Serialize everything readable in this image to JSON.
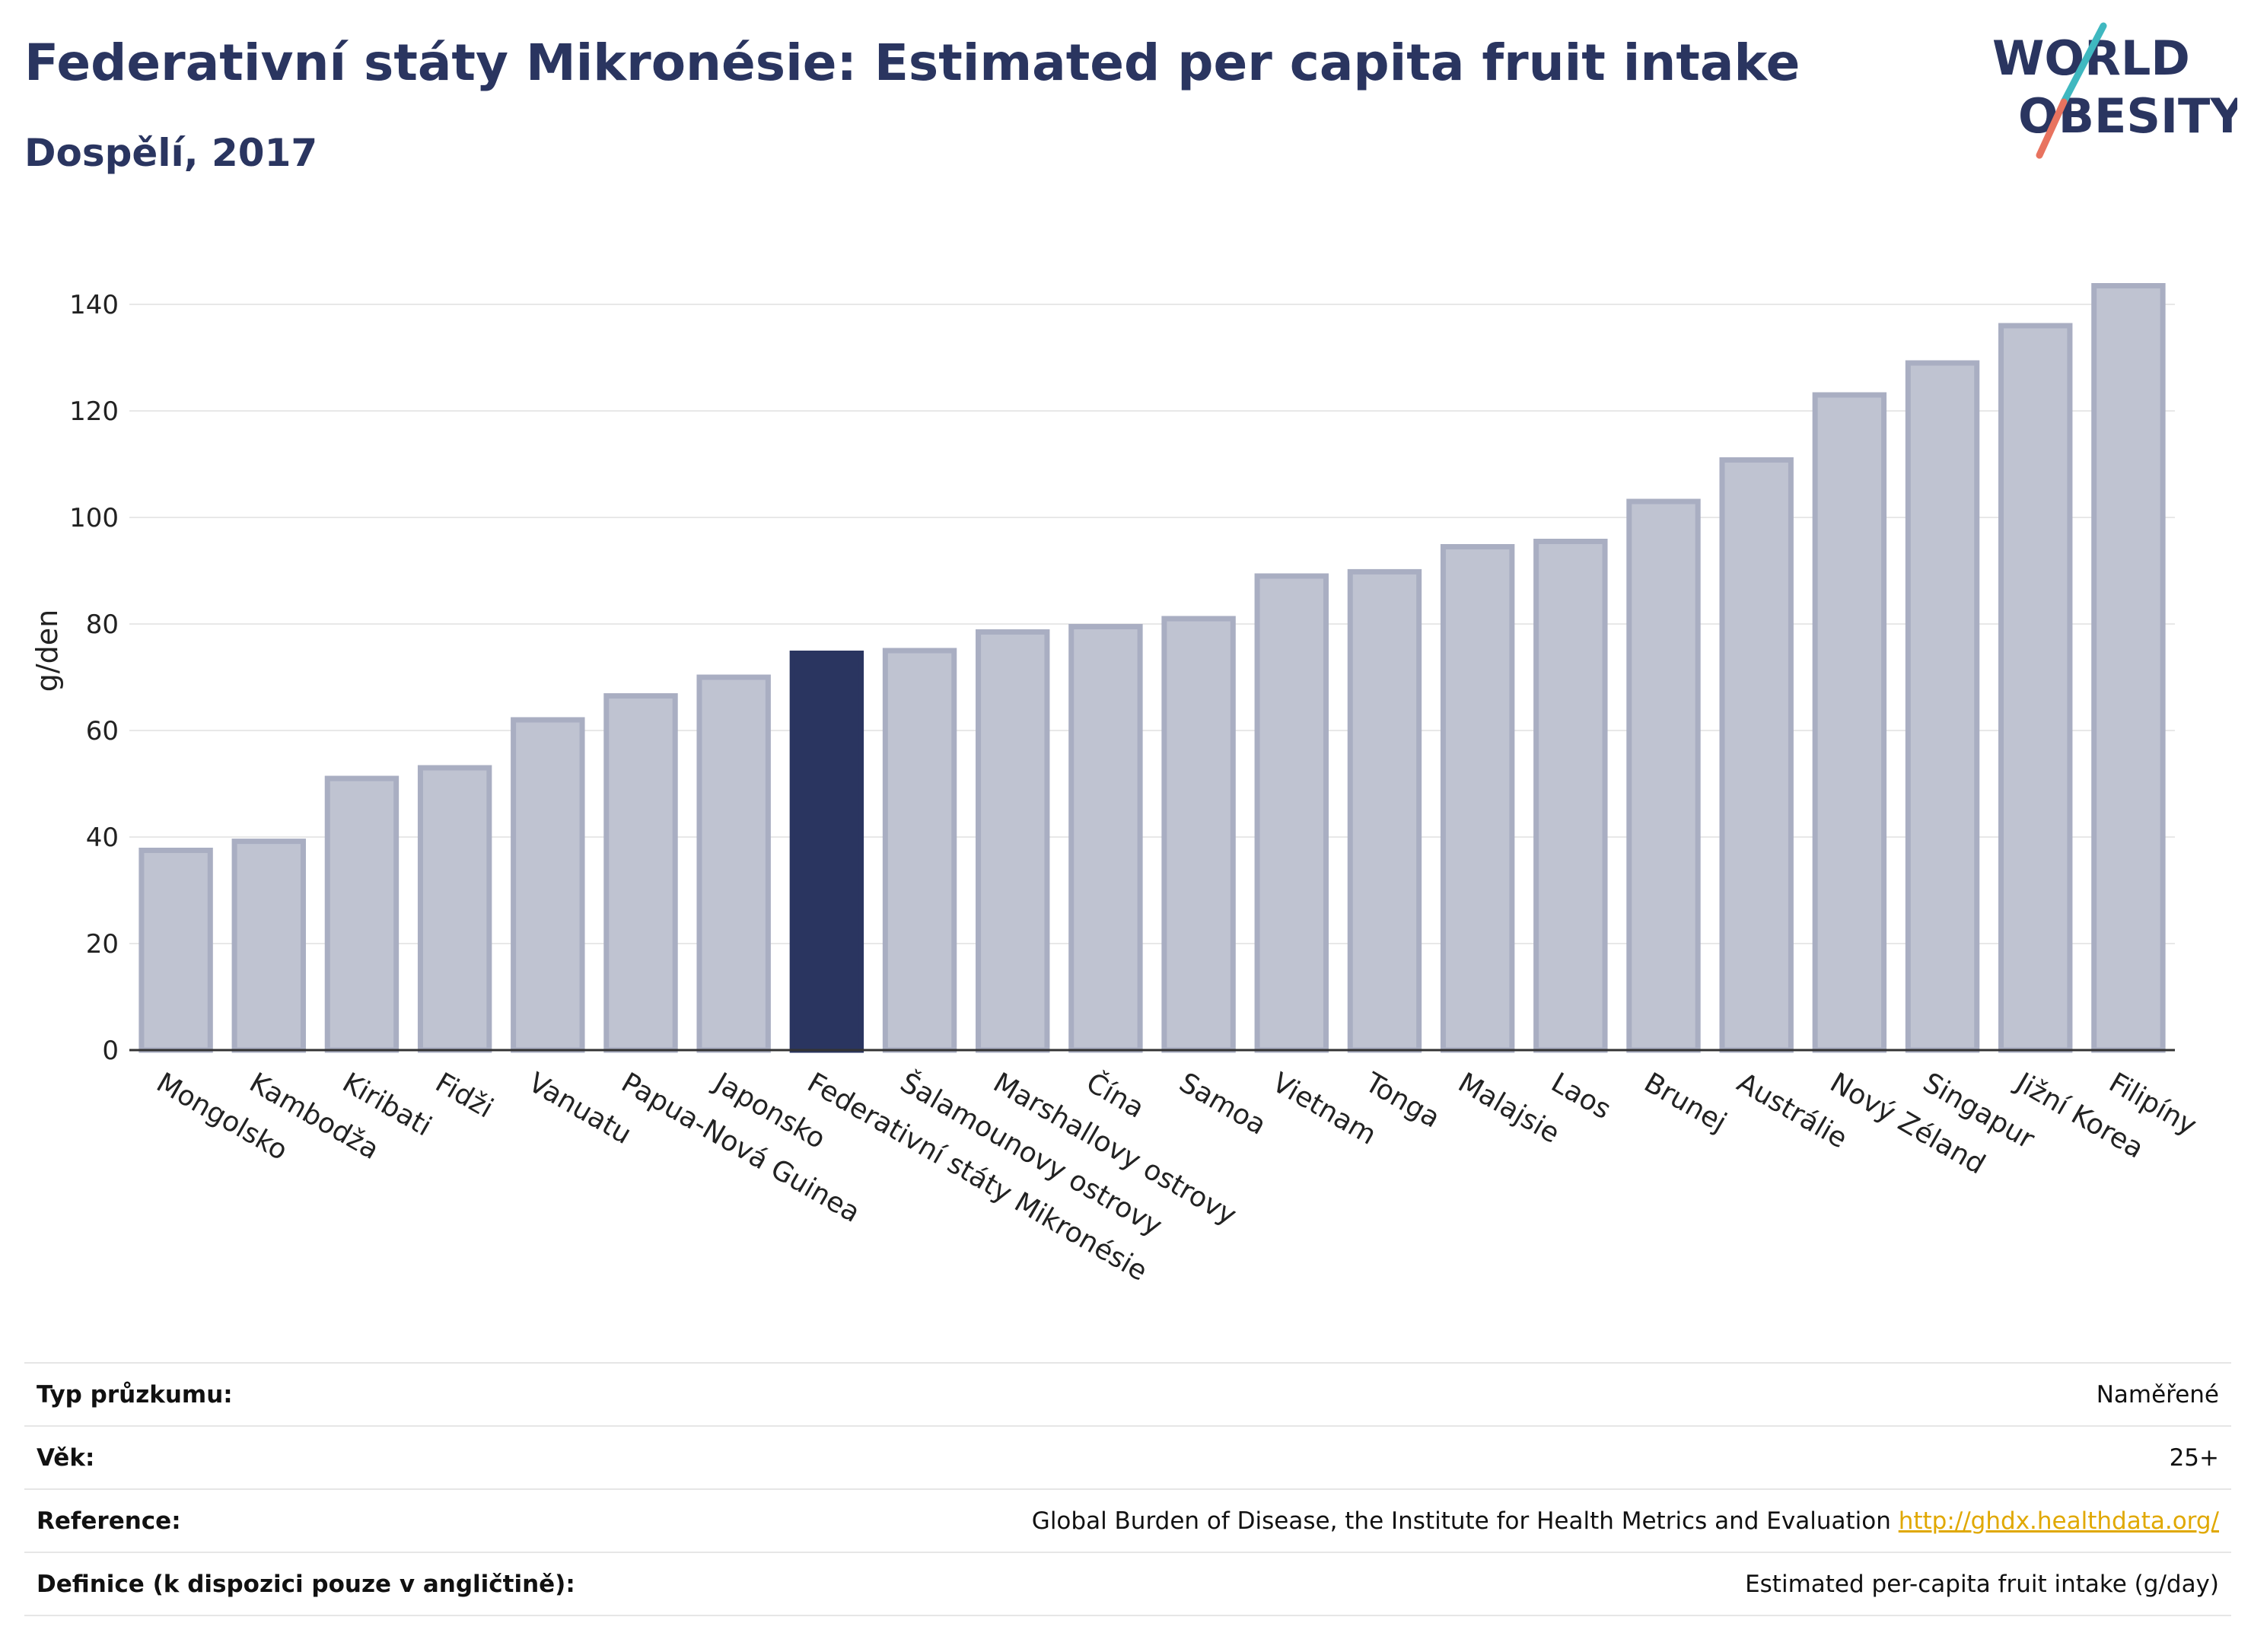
{
  "header": {
    "title": "Federativní státy Mikronésie: Estimated per capita fruit intake",
    "subtitle": "Dospělí, 2017"
  },
  "logo": {
    "line1": "WORLD",
    "line2": "OBESITY"
  },
  "chart_data": {
    "type": "bar",
    "title": "Federativní státy Mikronésie: Estimated per capita fruit intake",
    "subtitle": "Dospělí, 2017",
    "xlabel": "",
    "ylabel": "g/den",
    "ylim": [
      0,
      150
    ],
    "yticks": [
      0,
      20,
      40,
      60,
      80,
      100,
      120,
      140
    ],
    "grid": true,
    "highlight": "Federativní státy Mikronésie",
    "colors": {
      "bar": "#bfc3d1",
      "bar_edge": "#a9aec2",
      "highlight": "#2a3560",
      "grid": "#e8e8e8"
    },
    "categories": [
      "Mongolsko",
      "Kambodža",
      "Kiribati",
      "Fidži",
      "Vanuatu",
      "Papua-Nová Guinea",
      "Japonsko",
      "Federativní státy Mikronésie",
      "Šalamounovy ostrovy",
      "Marshallovy ostrovy",
      "Čína",
      "Samoa",
      "Vietnam",
      "Tonga",
      "Malajsie",
      "Laos",
      "Brunej",
      "Austrálie",
      "Nový Zéland",
      "Singapur",
      "Jižní Korea",
      "Filipíny"
    ],
    "values": [
      37.5,
      39.2,
      51,
      53,
      62,
      66.5,
      70,
      74.5,
      75,
      78.5,
      79.5,
      81,
      89,
      89.8,
      94.5,
      95.5,
      103,
      110.8,
      123,
      129,
      136,
      143.5
    ]
  },
  "meta": [
    {
      "label": "Typ průzkumu:",
      "value": "Naměřené"
    },
    {
      "label": "Věk:",
      "value": "25+"
    },
    {
      "label": "Reference:",
      "value": "Global Burden of Disease, the Institute for Health Metrics and Evaluation",
      "link": "http://ghdx.healthdata.org/"
    },
    {
      "label": "Definice (k dispozici pouze v angličtině):",
      "value": "Estimated per-capita fruit intake (g/day)"
    }
  ]
}
